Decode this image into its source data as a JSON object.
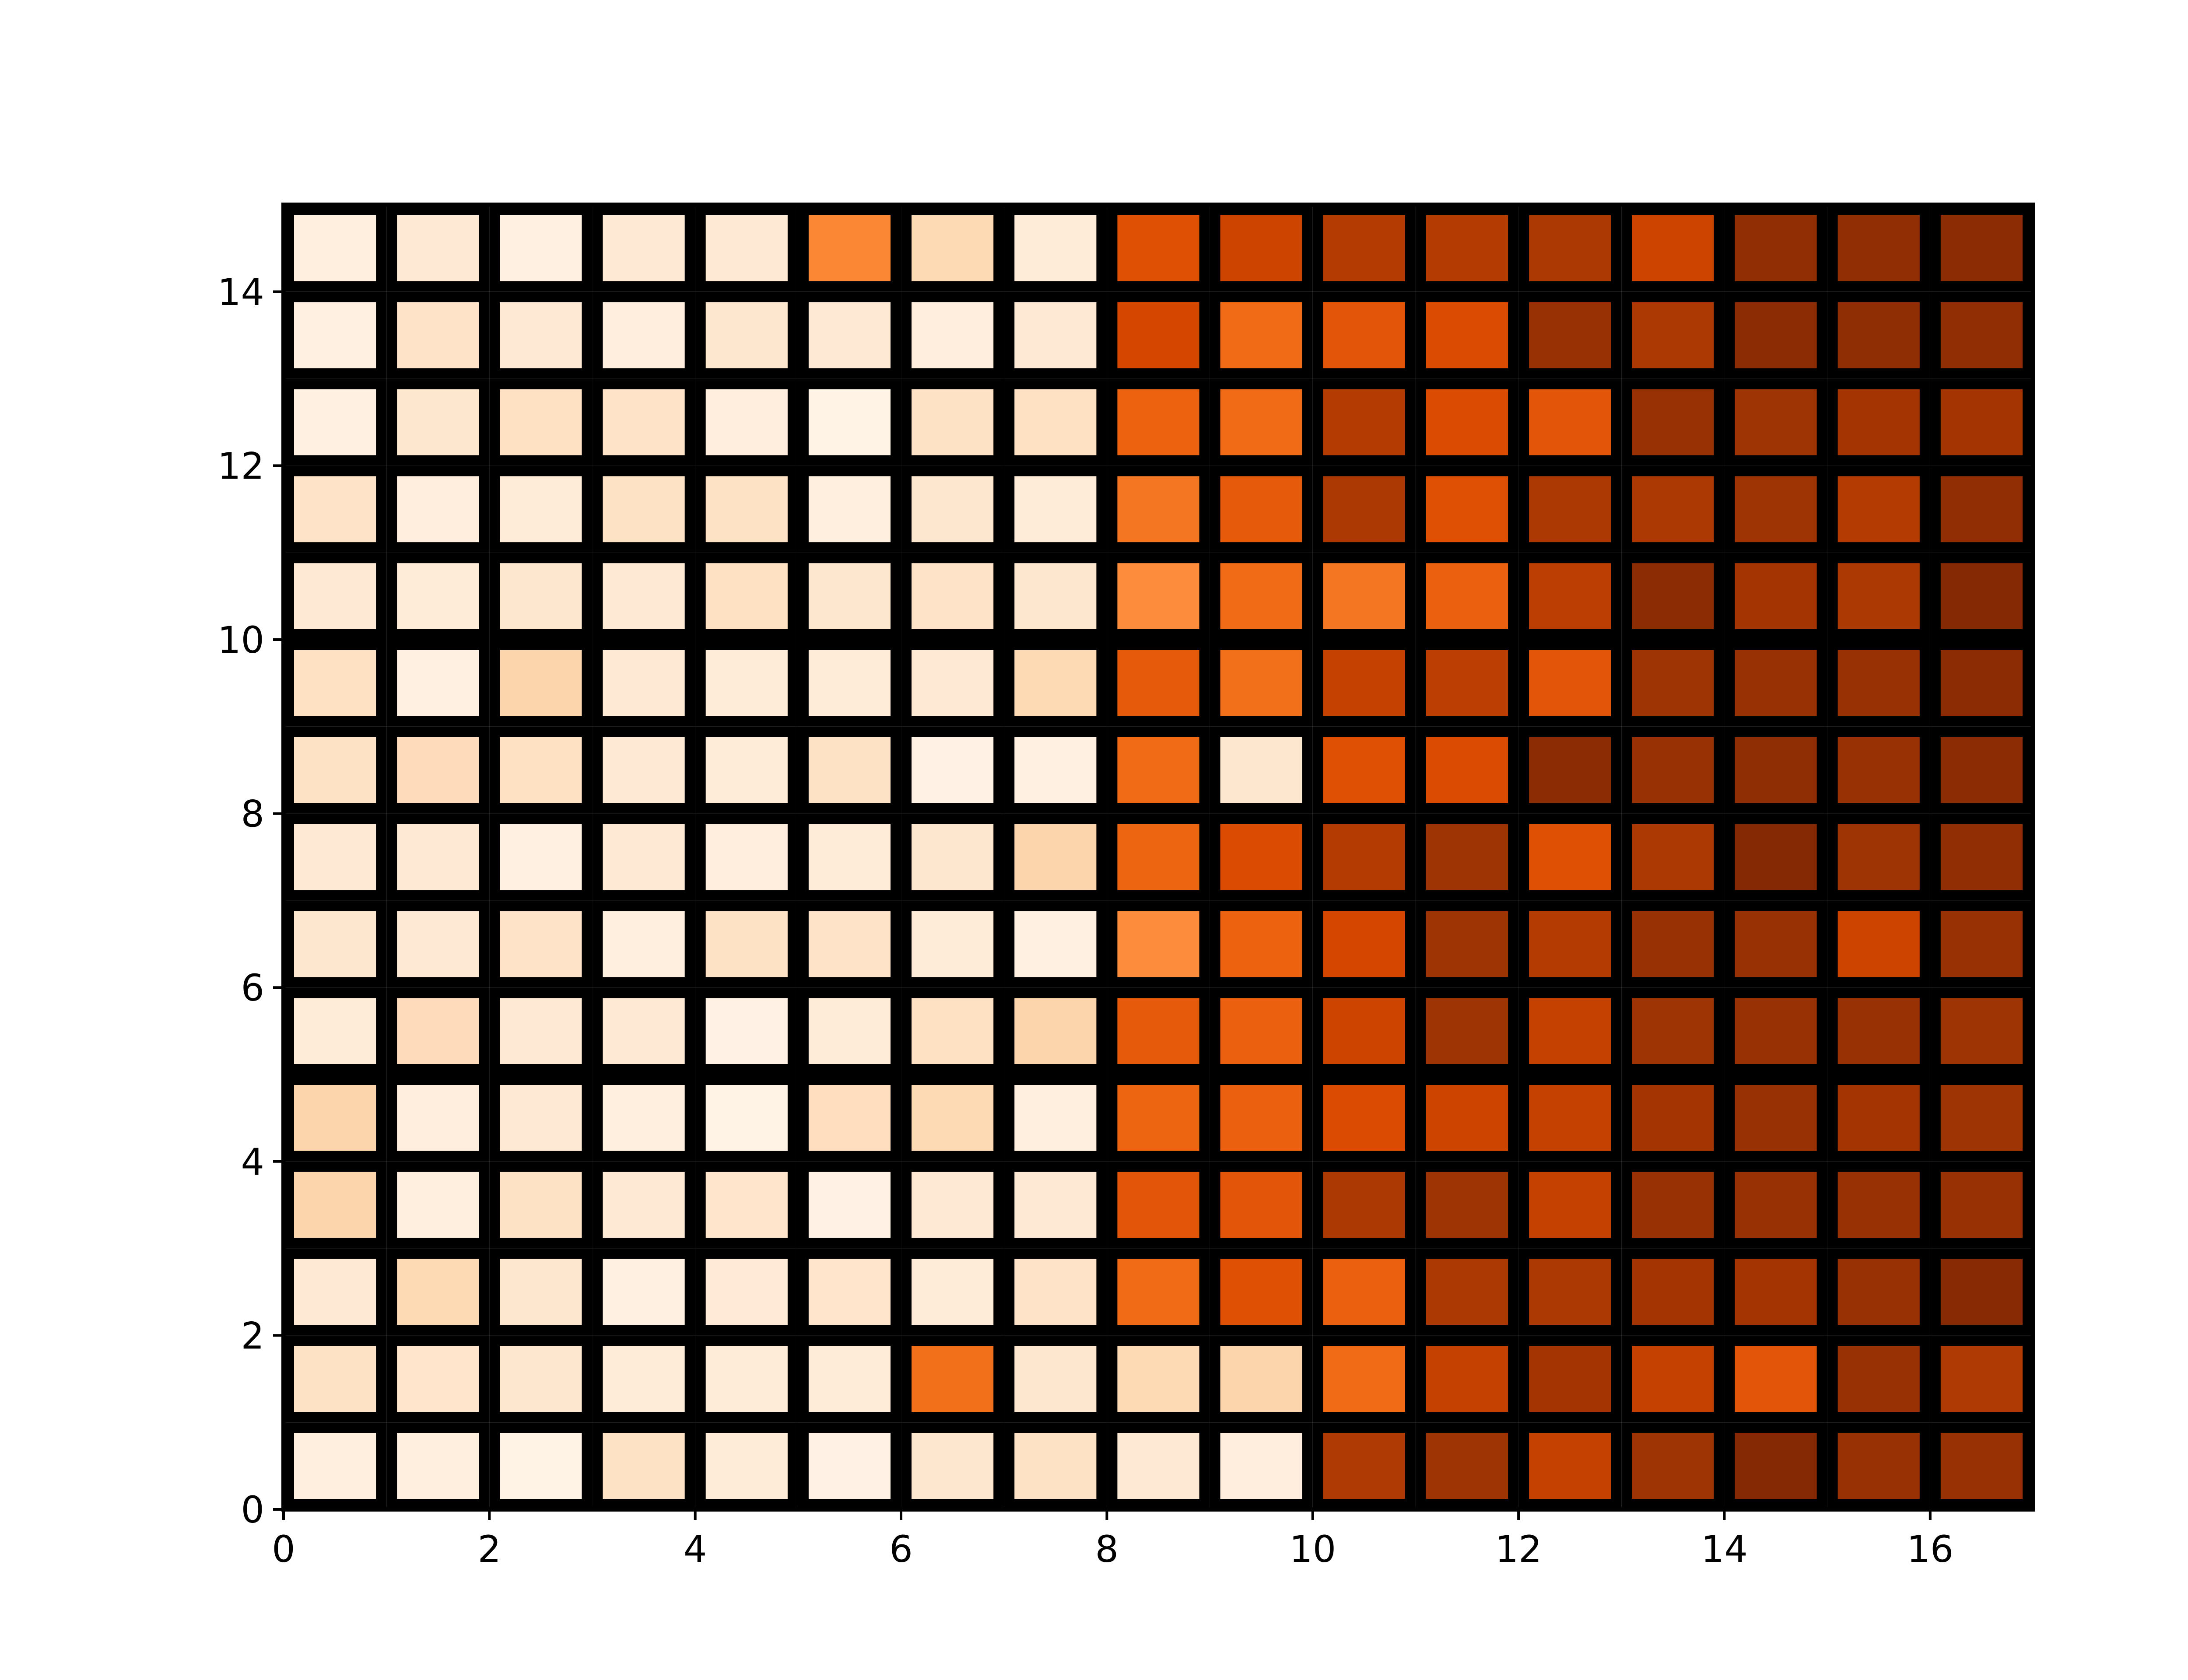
{
  "chart_data": {
    "type": "heatmap",
    "title": "",
    "xlabel": "",
    "ylabel": "",
    "xlim": [
      0,
      17
    ],
    "ylim": [
      0,
      15
    ],
    "x_ticks": [
      0,
      2,
      4,
      6,
      8,
      10,
      12,
      14,
      16
    ],
    "y_ticks": [
      0,
      2,
      4,
      6,
      8,
      10,
      12,
      14
    ],
    "x_tick_labels": [
      "0",
      "2",
      "4",
      "6",
      "8",
      "10",
      "12",
      "14",
      "16"
    ],
    "y_tick_labels": [
      "0",
      "2",
      "4",
      "6",
      "8",
      "10",
      "12",
      "14"
    ],
    "colormap": "Oranges",
    "value_range": [
      0,
      1
    ],
    "cell_edge_color": "#000000",
    "grid": false,
    "legend": "none",
    "rows_bottom_to_top": [
      [
        0.05,
        0.05,
        0.02,
        0.15,
        0.08,
        0.03,
        0.12,
        0.15,
        0.1,
        0.06,
        0.85,
        0.9,
        0.8,
        0.9,
        0.98,
        0.92,
        0.92
      ],
      [
        0.15,
        0.13,
        0.12,
        0.08,
        0.08,
        0.08,
        0.6,
        0.12,
        0.2,
        0.22,
        0.62,
        0.8,
        0.88,
        0.8,
        0.7,
        0.92,
        0.85
      ],
      [
        0.1,
        0.2,
        0.12,
        0.04,
        0.09,
        0.13,
        0.08,
        0.14,
        0.62,
        0.72,
        0.66,
        0.86,
        0.86,
        0.88,
        0.88,
        0.92,
        0.97
      ],
      [
        0.22,
        0.05,
        0.15,
        0.1,
        0.13,
        0.03,
        0.1,
        0.1,
        0.7,
        0.7,
        0.86,
        0.9,
        0.8,
        0.92,
        0.92,
        0.92,
        0.92
      ],
      [
        0.22,
        0.06,
        0.1,
        0.05,
        0.02,
        0.17,
        0.2,
        0.05,
        0.64,
        0.66,
        0.74,
        0.78,
        0.8,
        0.88,
        0.92,
        0.88,
        0.9
      ],
      [
        0.08,
        0.18,
        0.1,
        0.1,
        0.03,
        0.08,
        0.16,
        0.22,
        0.68,
        0.66,
        0.78,
        0.9,
        0.8,
        0.9,
        0.92,
        0.92,
        0.9
      ],
      [
        0.12,
        0.1,
        0.14,
        0.05,
        0.15,
        0.14,
        0.08,
        0.04,
        0.5,
        0.65,
        0.76,
        0.9,
        0.84,
        0.92,
        0.92,
        0.78,
        0.92
      ],
      [
        0.1,
        0.1,
        0.04,
        0.1,
        0.06,
        0.08,
        0.12,
        0.22,
        0.64,
        0.74,
        0.84,
        0.9,
        0.72,
        0.86,
        0.98,
        0.9,
        0.94
      ],
      [
        0.15,
        0.18,
        0.16,
        0.1,
        0.08,
        0.15,
        0.03,
        0.04,
        0.62,
        0.12,
        0.72,
        0.74,
        0.96,
        0.92,
        0.95,
        0.92,
        0.96
      ],
      [
        0.16,
        0.04,
        0.22,
        0.1,
        0.08,
        0.08,
        0.1,
        0.2,
        0.68,
        0.6,
        0.8,
        0.82,
        0.7,
        0.9,
        0.92,
        0.92,
        0.96
      ],
      [
        0.1,
        0.08,
        0.12,
        0.1,
        0.16,
        0.12,
        0.14,
        0.12,
        0.5,
        0.62,
        0.58,
        0.66,
        0.82,
        0.96,
        0.88,
        0.86,
        0.98
      ],
      [
        0.14,
        0.06,
        0.08,
        0.15,
        0.15,
        0.05,
        0.12,
        0.08,
        0.58,
        0.68,
        0.86,
        0.72,
        0.86,
        0.86,
        0.9,
        0.84,
        0.94
      ],
      [
        0.04,
        0.12,
        0.16,
        0.14,
        0.06,
        0.02,
        0.15,
        0.16,
        0.65,
        0.62,
        0.84,
        0.74,
        0.7,
        0.92,
        0.9,
        0.88,
        0.88
      ],
      [
        0.04,
        0.14,
        0.1,
        0.06,
        0.12,
        0.1,
        0.06,
        0.1,
        0.76,
        0.62,
        0.7,
        0.74,
        0.92,
        0.86,
        0.96,
        0.95,
        0.94
      ],
      [
        0.05,
        0.1,
        0.04,
        0.1,
        0.1,
        0.52,
        0.2,
        0.08,
        0.72,
        0.78,
        0.84,
        0.84,
        0.86,
        0.78,
        0.94,
        0.94,
        0.96
      ]
    ]
  }
}
